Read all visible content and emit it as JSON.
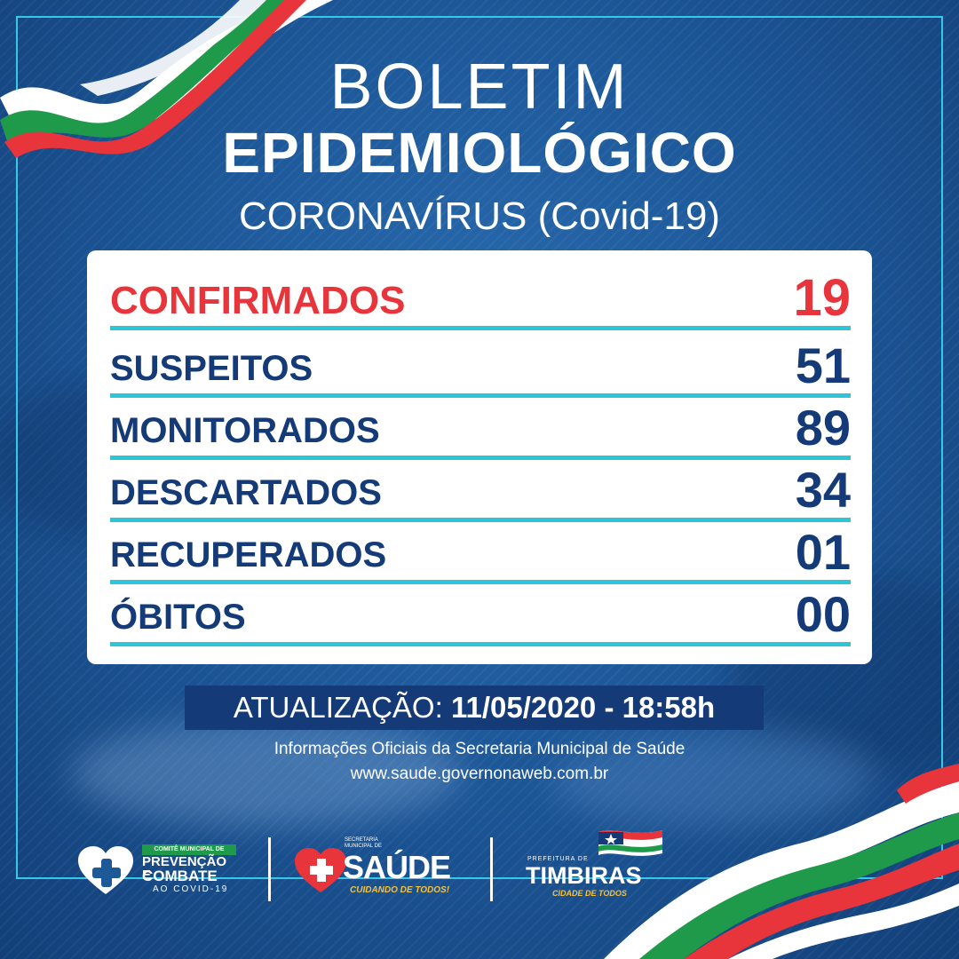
{
  "title": {
    "line1": "BOLETIM",
    "line2": "EPIDEMIOLÓGICO",
    "line3": "CORONAVÍRUS (Covid-19)"
  },
  "stats": {
    "confirmed": {
      "label": "CONFIRMADOS",
      "value": "19"
    },
    "rows": [
      {
        "label": "SUSPEITOS",
        "value": "51"
      },
      {
        "label": "MONITORADOS",
        "value": "89"
      },
      {
        "label": "DESCARTADOS",
        "value": "34"
      },
      {
        "label": "RECUPERADOS",
        "value": "01"
      },
      {
        "label": "ÓBITOS",
        "value": "00"
      }
    ]
  },
  "update": {
    "label": "ATUALIZAÇÃO:",
    "value": "11/05/2020 - 18:58h"
  },
  "source": {
    "line1": "Informações Oficiais da Secretaria Municipal de Saúde",
    "line2": "www.saude.governonaweb.com.br"
  },
  "logos": {
    "comite": {
      "top": "COMITÊ MUNICIPAL DE",
      "line1": "PREVENÇÃO E",
      "line2": "COMBATE",
      "line3": "AO COVID-19"
    },
    "saude": {
      "top": "SECRETARIA MUNICIPAL DE",
      "name": "SAÚDE",
      "tagline": "CUIDANDO DE TODOS!"
    },
    "timbiras": {
      "top": "PREFEITURA DE",
      "name": "TIMBIRAS",
      "tagline": "CIDADE DE TODOS"
    }
  },
  "colors": {
    "background": "#1d5899",
    "navy": "#153a78",
    "red": "#e8343b",
    "cyan": "#2ec6d6",
    "green": "#1f9a4a"
  }
}
